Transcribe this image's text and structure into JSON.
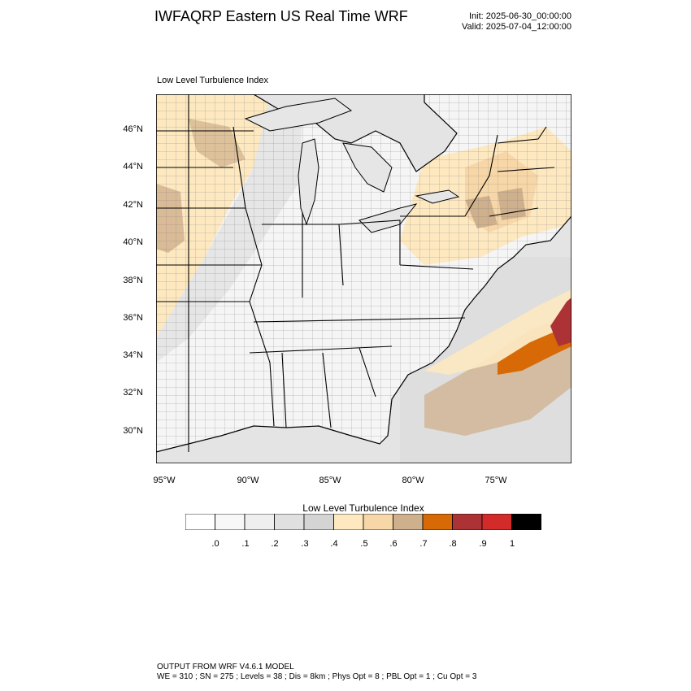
{
  "header": {
    "title": "IWFAQRP Eastern US Real Time WRF",
    "init": "Init: 2025-06-30_00:00:00",
    "valid": "Valid: 2025-07-04_12:00:00"
  },
  "map": {
    "subtitle": "Low Level Turbulence Index",
    "lat_labels": [
      "46°N",
      "44°N",
      "42°N",
      "40°N",
      "38°N",
      "36°N",
      "34°N",
      "32°N",
      "30°N"
    ],
    "lon_labels": [
      "95°W",
      "90°W",
      "85°W",
      "80°W",
      "75°W"
    ],
    "colors": {
      "land_base": "#f7f7f7",
      "water": "#e8e8e8",
      "light_orange": "#fde8c0",
      "orange": "#f7d7a8",
      "tan": "#cfb08c",
      "dark_orange": "#d76a06",
      "red_brown": "#ac3236"
    }
  },
  "colorbar": {
    "title": "Low Level Turbulence Index",
    "colors": [
      "#ffffff",
      "#f7f7f7",
      "#efefef",
      "#e0e0e0",
      "#d4d4d4",
      "#fde8c0",
      "#f7d7a8",
      "#cfb08c",
      "#d76a06",
      "#ac3236",
      "#d32a2a",
      "#000000"
    ],
    "labels": [
      ".0",
      ".1",
      ".2",
      ".3",
      ".4",
      ".5",
      ".6",
      ".7",
      ".8",
      ".9",
      "1"
    ]
  },
  "footer": {
    "line1": "OUTPUT FROM WRF V4.6.1 MODEL",
    "line2": "WE = 310 ; SN = 275 ; Levels = 38 ; Dis = 8km ; Phys Opt = 8 ; PBL Opt = 1 ; Cu Opt = 3"
  }
}
